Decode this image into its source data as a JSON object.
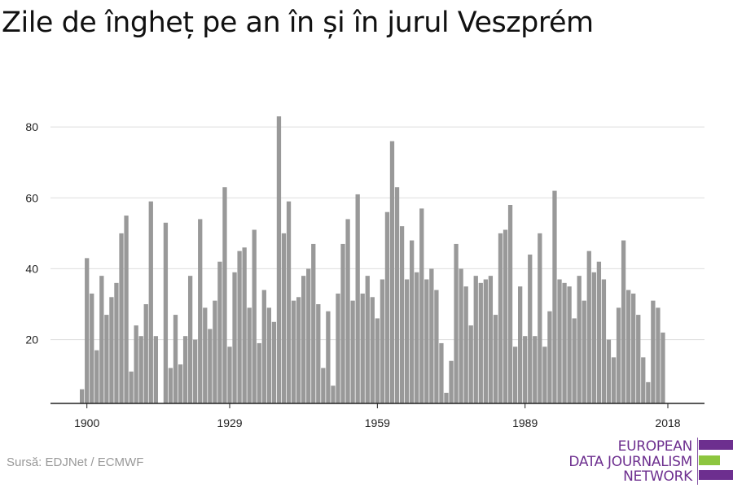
{
  "title": "Zile de îngheț pe an în și în jurul Veszprém",
  "source": "Sursă: EDJNet / ECMWF",
  "logo": {
    "lines": [
      "EUROPEAN",
      "DATA JOURNALISM",
      "NETWORK"
    ],
    "colors": {
      "text": "#6d2f8f",
      "bar_purple": "#6d2f8f",
      "bar_green": "#8dc63f"
    }
  },
  "chart_data": {
    "type": "bar",
    "title": "Zile de îngheț pe an în și în jurul Veszprém",
    "xlabel": "",
    "ylabel": "",
    "x_ticks": [
      1900,
      1929,
      1959,
      1989,
      2018
    ],
    "y_ticks": [
      20,
      40,
      60,
      80
    ],
    "ylim": [
      2,
      86
    ],
    "xlim": [
      1899,
      2018
    ],
    "grid": true,
    "bar_color": "#999999",
    "years": [
      1899,
      1900,
      1901,
      1902,
      1903,
      1904,
      1905,
      1906,
      1907,
      1908,
      1909,
      1910,
      1911,
      1912,
      1913,
      1914,
      1915,
      1916,
      1917,
      1918,
      1919,
      1920,
      1921,
      1922,
      1923,
      1924,
      1925,
      1926,
      1927,
      1928,
      1929,
      1930,
      1931,
      1932,
      1933,
      1934,
      1935,
      1936,
      1937,
      1938,
      1939,
      1940,
      1941,
      1942,
      1943,
      1944,
      1945,
      1946,
      1947,
      1948,
      1949,
      1950,
      1951,
      1952,
      1953,
      1954,
      1955,
      1956,
      1957,
      1958,
      1959,
      1960,
      1961,
      1962,
      1963,
      1964,
      1965,
      1966,
      1967,
      1968,
      1969,
      1970,
      1971,
      1972,
      1973,
      1974,
      1975,
      1976,
      1977,
      1978,
      1979,
      1980,
      1981,
      1982,
      1983,
      1984,
      1985,
      1986,
      1987,
      1988,
      1989,
      1990,
      1991,
      1992,
      1993,
      1994,
      1995,
      1996,
      1997,
      1998,
      1999,
      2000,
      2001,
      2002,
      2003,
      2004,
      2005,
      2006,
      2007,
      2008,
      2009,
      2010,
      2011,
      2012,
      2013,
      2014,
      2015,
      2016,
      2017
    ],
    "values": [
      6,
      43,
      33,
      17,
      38,
      27,
      32,
      36,
      50,
      55,
      11,
      24,
      21,
      30,
      59,
      21,
      null,
      53,
      12,
      27,
      13,
      21,
      38,
      20,
      54,
      29,
      23,
      31,
      42,
      63,
      18,
      39,
      45,
      46,
      29,
      51,
      19,
      34,
      29,
      25,
      83,
      50,
      59,
      31,
      32,
      38,
      40,
      47,
      30,
      12,
      28,
      7,
      33,
      47,
      54,
      31,
      61,
      33,
      38,
      32,
      26,
      37,
      56,
      76,
      63,
      52,
      37,
      48,
      39,
      57,
      37,
      40,
      34,
      19,
      5,
      14,
      47,
      40,
      35,
      24,
      38,
      36,
      37,
      38,
      27,
      50,
      51,
      58,
      18,
      35,
      21,
      44,
      21,
      50,
      18,
      28,
      62,
      37,
      36,
      35,
      26,
      38,
      31,
      45,
      39,
      42,
      37,
      20,
      15,
      29,
      48,
      34,
      33,
      27,
      15,
      8,
      31,
      29,
      22
    ]
  }
}
